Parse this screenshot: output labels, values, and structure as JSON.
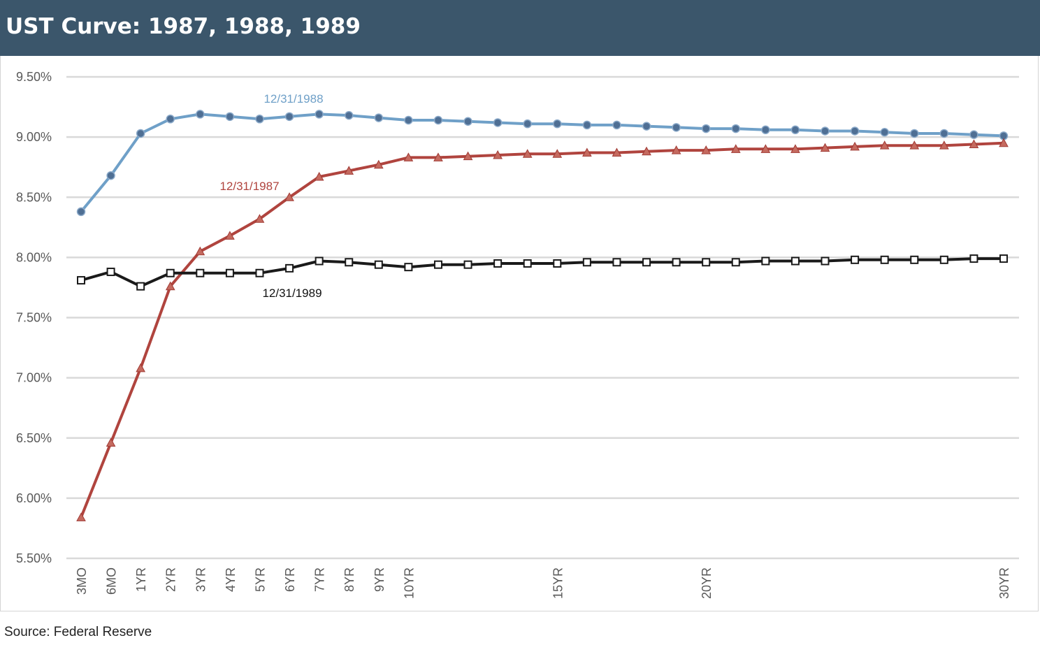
{
  "title": "UST Curve: 1987, 1988, 1989",
  "source": "Source: Federal Reserve",
  "chart_data": {
    "type": "line",
    "title": "UST Curve: 1987, 1988, 1989",
    "xlabel": "",
    "ylabel": "",
    "x": [
      0.25,
      0.5,
      1,
      2,
      3,
      4,
      5,
      6,
      7,
      8,
      9,
      10,
      11,
      12,
      13,
      14,
      15,
      16,
      17,
      18,
      19,
      20,
      21,
      22,
      23,
      24,
      25,
      26,
      27,
      28,
      29,
      30
    ],
    "tick_labels": [
      "3MO",
      "6MO",
      "1YR",
      "2YR",
      "3YR",
      "4YR",
      "5YR",
      "6YR",
      "7YR",
      "8YR",
      "9YR",
      "10YR",
      "",
      "",
      "",
      "",
      "15YR",
      "",
      "",
      "",
      "",
      "20YR",
      "",
      "",
      "",
      "",
      "",
      "",
      "",
      "",
      "",
      "30YR"
    ],
    "ylim": [
      5.5,
      9.5
    ],
    "yticks": [
      5.5,
      6.0,
      6.5,
      7.0,
      7.5,
      8.0,
      8.5,
      9.0,
      9.5
    ],
    "ytick_labels": [
      "5.50%",
      "6.00%",
      "6.50%",
      "7.00%",
      "7.50%",
      "8.00%",
      "8.50%",
      "9.00%",
      "9.50%"
    ],
    "grid": "horizontal",
    "series": [
      {
        "name": "12/31/1988",
        "color": "#6fa0c8",
        "marker": "circle",
        "values": [
          8.38,
          8.68,
          9.03,
          9.15,
          9.19,
          9.17,
          9.15,
          9.17,
          9.19,
          9.18,
          9.16,
          9.14,
          9.14,
          9.13,
          9.12,
          9.11,
          9.11,
          9.1,
          9.1,
          9.09,
          9.08,
          9.07,
          9.07,
          9.06,
          9.06,
          9.05,
          9.05,
          9.04,
          9.03,
          9.03,
          9.02,
          9.01
        ]
      },
      {
        "name": "12/31/1987",
        "color": "#b0443e",
        "marker": "triangle",
        "values": [
          5.84,
          6.46,
          7.08,
          7.76,
          8.05,
          8.18,
          8.32,
          8.5,
          8.67,
          8.72,
          8.77,
          8.83,
          8.83,
          8.84,
          8.85,
          8.86,
          8.86,
          8.87,
          8.87,
          8.88,
          8.89,
          8.89,
          8.9,
          8.9,
          8.9,
          8.91,
          8.92,
          8.93,
          8.93,
          8.93,
          8.94,
          8.95
        ]
      },
      {
        "name": "12/31/1989",
        "color": "#1a1a1a",
        "marker": "square",
        "values": [
          7.81,
          7.88,
          7.76,
          7.87,
          7.87,
          7.87,
          7.87,
          7.91,
          7.97,
          7.96,
          7.94,
          7.92,
          7.94,
          7.94,
          7.95,
          7.95,
          7.95,
          7.96,
          7.96,
          7.96,
          7.96,
          7.96,
          7.96,
          7.97,
          7.97,
          7.97,
          7.98,
          7.98,
          7.98,
          7.98,
          7.99,
          7.99
        ]
      }
    ],
    "annotations": [
      {
        "text": "12/31/1988",
        "series": 0
      },
      {
        "text": "12/31/1987",
        "series": 1
      },
      {
        "text": "12/31/1989",
        "series": 2
      }
    ]
  }
}
